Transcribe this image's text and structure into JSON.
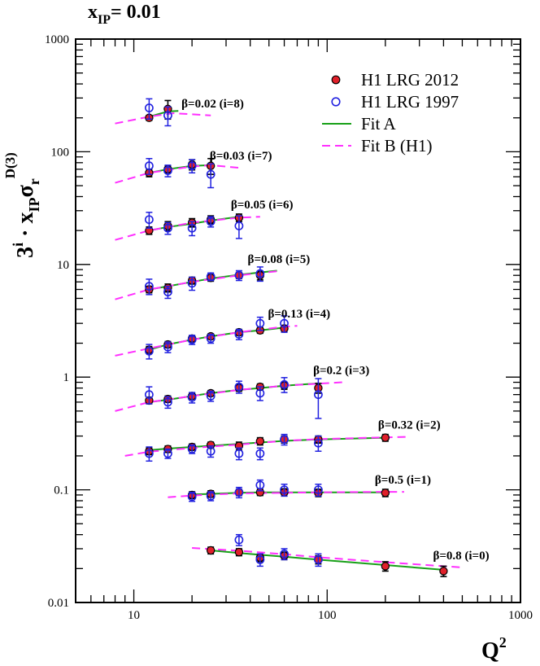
{
  "figure": {
    "top_label": {
      "main": "x",
      "sub": "IP",
      "rest": "= 0.01"
    }
  },
  "chart_data": {
    "type": "scatter",
    "xscale": "log",
    "yscale": "log",
    "xlim": [
      5,
      1000
    ],
    "ylim": [
      0.01,
      1000
    ],
    "xticks": [
      10,
      100,
      1000
    ],
    "yticks": [
      0.01,
      0.1,
      1,
      10,
      100,
      1000
    ],
    "xtick_labels": [
      "10",
      "100",
      "1000"
    ],
    "ytick_labels": [
      "0.01",
      "0.1",
      "1",
      "10",
      "100",
      "1000"
    ],
    "xlabel": {
      "base": "Q",
      "sup": "2"
    },
    "ylabel": {
      "prefix": "3",
      "prefix_sup": "i",
      "dot": " · x",
      "sub1": "IP",
      "sigma": "σ",
      "sub2": "r",
      "sup2": "D(3)"
    },
    "legend": {
      "position": "top-right",
      "entries": [
        {
          "label": "H1 LRG 2012",
          "style": "filled-circle",
          "color": "#e0202a"
        },
        {
          "label": "H1 LRG 1997",
          "style": "open-circle",
          "color": "#2020e0"
        },
        {
          "label": "Fit A",
          "style": "solid-line",
          "color": "#18a018"
        },
        {
          "label": "Fit B (H1)",
          "style": "dashed-line",
          "color": "#ff30ff"
        }
      ]
    },
    "series": [
      {
        "label": "β=0.02 (i=8)",
        "h1_2012": [
          [
            12,
            200,
            10
          ],
          [
            15,
            240,
            45
          ]
        ],
        "h1_1997": [
          [
            12,
            245,
            50
          ],
          [
            15,
            210,
            40
          ]
        ],
        "fit_a": [
          [
            12,
            205
          ],
          [
            15,
            228
          ],
          [
            17,
            230
          ]
        ],
        "fit_b": [
          [
            8,
            178
          ],
          [
            12,
            205
          ],
          [
            16,
            220
          ],
          [
            25,
            210
          ]
        ]
      },
      {
        "label": "β=0.03 (i=7)",
        "h1_2012": [
          [
            12,
            65,
            5
          ],
          [
            15,
            70,
            5
          ],
          [
            20,
            77,
            8
          ],
          [
            25,
            75,
            12
          ]
        ],
        "h1_1997": [
          [
            12,
            75,
            12
          ],
          [
            15,
            68,
            8
          ],
          [
            20,
            75,
            10
          ],
          [
            25,
            63,
            15
          ]
        ],
        "fit_a": [
          [
            12,
            65
          ],
          [
            15,
            70
          ],
          [
            20,
            75
          ],
          [
            25,
            76
          ]
        ],
        "fit_b": [
          [
            8,
            53
          ],
          [
            12,
            65
          ],
          [
            20,
            74
          ],
          [
            25,
            76
          ],
          [
            35,
            72
          ]
        ]
      },
      {
        "label": "β=0.05 (i=6)",
        "h1_2012": [
          [
            12,
            20,
            1.5
          ],
          [
            15,
            22,
            2
          ],
          [
            20,
            23.5,
            2
          ],
          [
            25,
            25,
            2
          ],
          [
            35,
            26,
            2
          ]
        ],
        "h1_1997": [
          [
            12,
            25,
            4
          ],
          [
            15,
            21,
            2.5
          ],
          [
            20,
            21,
            3
          ],
          [
            25,
            24,
            2.5
          ],
          [
            35,
            22,
            5
          ]
        ],
        "fit_a": [
          [
            12,
            20
          ],
          [
            15,
            21.5
          ],
          [
            20,
            23
          ],
          [
            25,
            24.5
          ],
          [
            35,
            26.5
          ]
        ],
        "fit_b": [
          [
            8,
            16.5
          ],
          [
            12,
            20
          ],
          [
            20,
            23.5
          ],
          [
            35,
            26
          ],
          [
            45,
            26.5
          ]
        ]
      },
      {
        "label": "β=0.08 (i=5)",
        "h1_2012": [
          [
            12,
            6,
            0.4
          ],
          [
            15,
            6.2,
            0.5
          ],
          [
            20,
            7.2,
            0.5
          ],
          [
            25,
            7.6,
            0.5
          ],
          [
            35,
            8,
            0.5
          ],
          [
            45,
            8,
            0.7
          ]
        ],
        "h1_1997": [
          [
            12,
            6.4,
            1
          ],
          [
            15,
            5.7,
            0.7
          ],
          [
            20,
            6.8,
            0.9
          ],
          [
            25,
            7.8,
            0.6
          ],
          [
            35,
            8,
            0.8
          ],
          [
            45,
            8.3,
            1.2
          ]
        ],
        "fit_a": [
          [
            12,
            6.0
          ],
          [
            15,
            6.4
          ],
          [
            20,
            7.0
          ],
          [
            25,
            7.5
          ],
          [
            35,
            8.1
          ],
          [
            45,
            8.5
          ],
          [
            55,
            8.8
          ]
        ],
        "fit_b": [
          [
            8,
            4.9
          ],
          [
            12,
            6.0
          ],
          [
            20,
            7.0
          ],
          [
            35,
            8.0
          ],
          [
            55,
            8.7
          ]
        ]
      },
      {
        "label": "β=0.13 (i=4)",
        "h1_2012": [
          [
            12,
            1.75,
            0.12
          ],
          [
            15,
            1.95,
            0.12
          ],
          [
            20,
            2.2,
            0.12
          ],
          [
            25,
            2.3,
            0.12
          ],
          [
            35,
            2.5,
            0.15
          ],
          [
            45,
            2.6,
            0.15
          ],
          [
            60,
            2.7,
            0.18
          ]
        ],
        "h1_1997": [
          [
            12,
            1.7,
            0.25
          ],
          [
            15,
            1.85,
            0.2
          ],
          [
            20,
            2.15,
            0.2
          ],
          [
            25,
            2.2,
            0.2
          ],
          [
            35,
            2.4,
            0.25
          ],
          [
            45,
            3.0,
            0.4
          ],
          [
            60,
            3.0,
            0.5
          ]
        ],
        "fit_a": [
          [
            12,
            1.75
          ],
          [
            15,
            1.95
          ],
          [
            20,
            2.15
          ],
          [
            25,
            2.3
          ],
          [
            35,
            2.5
          ],
          [
            45,
            2.6
          ],
          [
            60,
            2.75
          ]
        ],
        "fit_b": [
          [
            8,
            1.55
          ],
          [
            12,
            1.8
          ],
          [
            20,
            2.15
          ],
          [
            35,
            2.5
          ],
          [
            60,
            2.8
          ],
          [
            70,
            2.85
          ]
        ]
      },
      {
        "label": "β=0.2 (i=3)",
        "h1_2012": [
          [
            12,
            0.62,
            0.04
          ],
          [
            15,
            0.64,
            0.04
          ],
          [
            20,
            0.68,
            0.04
          ],
          [
            25,
            0.72,
            0.04
          ],
          [
            35,
            0.8,
            0.05
          ],
          [
            45,
            0.82,
            0.05
          ],
          [
            60,
            0.84,
            0.06
          ],
          [
            90,
            0.8,
            0.08
          ]
        ],
        "h1_1997": [
          [
            12,
            0.7,
            0.12
          ],
          [
            15,
            0.6,
            0.07
          ],
          [
            20,
            0.66,
            0.07
          ],
          [
            25,
            0.68,
            0.07
          ],
          [
            35,
            0.82,
            0.1
          ],
          [
            45,
            0.72,
            0.1
          ],
          [
            60,
            0.86,
            0.13
          ],
          [
            90,
            0.7,
            0.27
          ]
        ],
        "fit_a": [
          [
            12,
            0.6
          ],
          [
            15,
            0.63
          ],
          [
            20,
            0.68
          ],
          [
            25,
            0.72
          ],
          [
            35,
            0.77
          ],
          [
            45,
            0.8
          ],
          [
            60,
            0.84
          ],
          [
            90,
            0.88
          ]
        ],
        "fit_b": [
          [
            8,
            0.5
          ],
          [
            12,
            0.6
          ],
          [
            20,
            0.68
          ],
          [
            35,
            0.77
          ],
          [
            60,
            0.84
          ],
          [
            120,
            0.9
          ]
        ]
      },
      {
        "label": "β=0.32 (i=2)",
        "h1_2012": [
          [
            12,
            0.22,
            0.015
          ],
          [
            15,
            0.23,
            0.015
          ],
          [
            20,
            0.24,
            0.015
          ],
          [
            25,
            0.25,
            0.015
          ],
          [
            35,
            0.245,
            0.02
          ],
          [
            45,
            0.27,
            0.02
          ],
          [
            60,
            0.28,
            0.02
          ],
          [
            90,
            0.28,
            0.02
          ],
          [
            200,
            0.29,
            0.02
          ]
        ],
        "h1_1997": [
          [
            12,
            0.21,
            0.03
          ],
          [
            15,
            0.21,
            0.02
          ],
          [
            20,
            0.23,
            0.02
          ],
          [
            25,
            0.22,
            0.025
          ],
          [
            35,
            0.21,
            0.025
          ],
          [
            45,
            0.21,
            0.025
          ],
          [
            60,
            0.28,
            0.03
          ],
          [
            90,
            0.26,
            0.04
          ]
        ],
        "fit_a": [
          [
            12,
            0.225
          ],
          [
            15,
            0.232
          ],
          [
            20,
            0.24
          ],
          [
            25,
            0.246
          ],
          [
            35,
            0.255
          ],
          [
            45,
            0.263
          ],
          [
            60,
            0.272
          ],
          [
            90,
            0.28
          ],
          [
            200,
            0.29
          ]
        ],
        "fit_b": [
          [
            9,
            0.2
          ],
          [
            12,
            0.218
          ],
          [
            20,
            0.235
          ],
          [
            35,
            0.252
          ],
          [
            60,
            0.272
          ],
          [
            90,
            0.282
          ],
          [
            200,
            0.292
          ],
          [
            260,
            0.295
          ]
        ]
      },
      {
        "label": "β=0.5 (i=1)",
        "h1_2012": [
          [
            20,
            0.09,
            0.006
          ],
          [
            25,
            0.092,
            0.006
          ],
          [
            35,
            0.095,
            0.006
          ],
          [
            45,
            0.095,
            0.006
          ],
          [
            60,
            0.095,
            0.007
          ],
          [
            90,
            0.094,
            0.007
          ],
          [
            200,
            0.094,
            0.007
          ]
        ],
        "h1_1997": [
          [
            20,
            0.087,
            0.008
          ],
          [
            25,
            0.088,
            0.008
          ],
          [
            35,
            0.095,
            0.01
          ],
          [
            45,
            0.11,
            0.012
          ],
          [
            60,
            0.1,
            0.012
          ],
          [
            90,
            0.1,
            0.012
          ]
        ],
        "fit_a": [
          [
            20,
            0.091
          ],
          [
            25,
            0.092
          ],
          [
            35,
            0.094
          ],
          [
            45,
            0.095
          ],
          [
            60,
            0.095
          ],
          [
            90,
            0.095
          ],
          [
            200,
            0.095
          ]
        ],
        "fit_b": [
          [
            15,
            0.086
          ],
          [
            20,
            0.089
          ],
          [
            35,
            0.093
          ],
          [
            90,
            0.095
          ],
          [
            200,
            0.096
          ],
          [
            250,
            0.096
          ]
        ]
      },
      {
        "label": "β=0.8 (i=0)",
        "h1_2012": [
          [
            25,
            0.029,
            0.002
          ],
          [
            35,
            0.028,
            0.002
          ],
          [
            45,
            0.025,
            0.002
          ],
          [
            60,
            0.026,
            0.002
          ],
          [
            90,
            0.024,
            0.002
          ],
          [
            200,
            0.021,
            0.002
          ],
          [
            400,
            0.019,
            0.002
          ]
        ],
        "h1_1997": [
          [
            35,
            0.036,
            0.004
          ],
          [
            45,
            0.024,
            0.003
          ],
          [
            60,
            0.027,
            0.003
          ],
          [
            90,
            0.024,
            0.003
          ]
        ],
        "fit_a": [
          [
            25,
            0.029
          ],
          [
            35,
            0.0275
          ],
          [
            45,
            0.0265
          ],
          [
            60,
            0.0255
          ],
          [
            90,
            0.024
          ],
          [
            200,
            0.0215
          ],
          [
            400,
            0.0195
          ]
        ],
        "fit_b": [
          [
            20,
            0.0305
          ],
          [
            35,
            0.0288
          ],
          [
            60,
            0.0268
          ],
          [
            90,
            0.0252
          ],
          [
            200,
            0.0228
          ],
          [
            400,
            0.021
          ],
          [
            500,
            0.0205
          ]
        ]
      }
    ]
  }
}
